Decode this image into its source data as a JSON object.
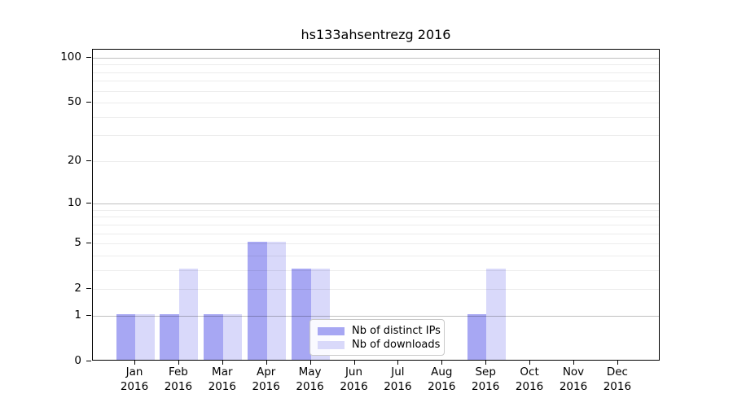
{
  "chart_data": {
    "type": "bar",
    "title": "hs133ahsentrezg 2016",
    "x_categories": [
      {
        "month": "Jan",
        "year": "2016"
      },
      {
        "month": "Feb",
        "year": "2016"
      },
      {
        "month": "Mar",
        "year": "2016"
      },
      {
        "month": "Apr",
        "year": "2016"
      },
      {
        "month": "May",
        "year": "2016"
      },
      {
        "month": "Jun",
        "year": "2016"
      },
      {
        "month": "Jul",
        "year": "2016"
      },
      {
        "month": "Aug",
        "year": "2016"
      },
      {
        "month": "Sep",
        "year": "2016"
      },
      {
        "month": "Oct",
        "year": "2016"
      },
      {
        "month": "Nov",
        "year": "2016"
      },
      {
        "month": "Dec",
        "year": "2016"
      }
    ],
    "series": [
      {
        "name": "Nb of distinct IPs",
        "color": "#a7a7f3",
        "values": [
          1,
          1,
          1,
          5,
          3,
          0,
          0,
          0,
          1,
          0,
          0,
          0
        ]
      },
      {
        "name": "Nb of downloads",
        "color": "#d9d9fa",
        "values": [
          1,
          3,
          1,
          5,
          3,
          0,
          0,
          0,
          3,
          0,
          0,
          0
        ]
      }
    ],
    "y_axis": {
      "scale": "log10(1+x)",
      "ticks": [
        0,
        1,
        2,
        5,
        10,
        20,
        50,
        100
      ],
      "major_gridlines": [
        1,
        10,
        100
      ],
      "minor_gridlines": [
        2,
        3,
        4,
        5,
        6,
        7,
        8,
        9,
        20,
        30,
        40,
        50,
        60,
        70,
        80,
        90
      ],
      "ylim": [
        0,
        113
      ]
    },
    "legend": {
      "position": "lower-center"
    },
    "grid": "on",
    "axis_color": "#000000"
  }
}
